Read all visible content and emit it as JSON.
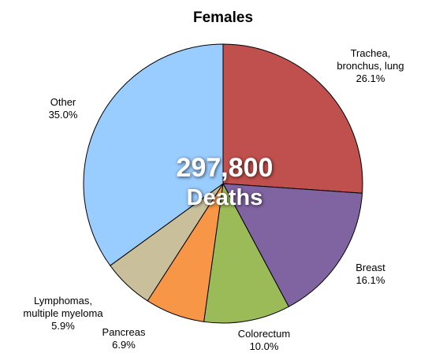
{
  "chart_data": {
    "type": "pie",
    "title": "Females",
    "center_text": [
      "297,800",
      "Deaths"
    ],
    "categories": [
      "Trachea, bronchus, lung",
      "Breast",
      "Colorectum",
      "Pancreas",
      "Lymphomas, multiple myeloma",
      "Other"
    ],
    "values": [
      26.1,
      16.1,
      10,
      6.9,
      5.9,
      35
    ],
    "value_labels": [
      "26.1%",
      "16.1%",
      "10.0%",
      "6.9%",
      "5.9%",
      "35.0%"
    ],
    "colors": [
      "#c0504d",
      "#8064a2",
      "#9bbb59",
      "#f79646",
      "#c9c09b",
      "#99ccff"
    ]
  }
}
